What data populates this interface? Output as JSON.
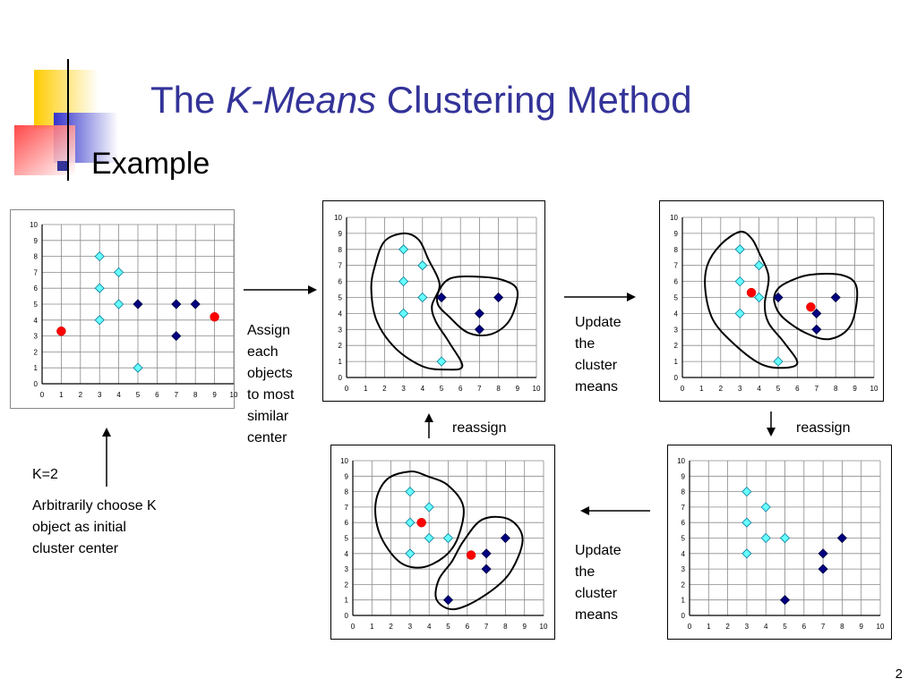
{
  "title": {
    "prefix": "The ",
    "italic": "K-Means",
    "suffix": " Clustering Method"
  },
  "bullet": "Example",
  "labels": {
    "assign": [
      "Assign",
      "each",
      "objects",
      "to most",
      "similar",
      "center"
    ],
    "update_top": [
      "Update",
      "the",
      "cluster",
      "means"
    ],
    "update_bottom": [
      "Update",
      "the",
      "cluster",
      "means"
    ],
    "reassign_left": "reassign",
    "reassign_right": "reassign",
    "k_value": "K=2",
    "arbitrary": [
      "Arbitrarily choose K",
      "object as initial",
      "cluster center"
    ]
  },
  "slide_number": "2",
  "colors": {
    "accent": "#333399",
    "cyan": "#66ffff",
    "navy": "#000080",
    "red": "#ff0000"
  },
  "chart_data": [
    {
      "type": "scatter",
      "panel": "initial",
      "xlim": [
        0,
        10
      ],
      "ylim": [
        0,
        10
      ],
      "grid": true,
      "x_ticks": [
        0,
        1,
        2,
        3,
        4,
        5,
        6,
        7,
        8,
        9,
        10
      ],
      "y_ticks": [
        0,
        1,
        2,
        3,
        4,
        5,
        6,
        7,
        8,
        9,
        10
      ],
      "series": [
        {
          "marker": "cyan-diamond",
          "points": [
            [
              3,
              8
            ],
            [
              4,
              7
            ],
            [
              3,
              6
            ],
            [
              4,
              5
            ],
            [
              3,
              4
            ],
            [
              5,
              1
            ]
          ]
        },
        {
          "marker": "navy-diamond",
          "points": [
            [
              5,
              5
            ],
            [
              7,
              5
            ],
            [
              8,
              5
            ],
            [
              7,
              3
            ]
          ]
        },
        {
          "marker": "red-circle",
          "points": [
            [
              1,
              3.3
            ],
            [
              9,
              4.2
            ]
          ]
        }
      ]
    },
    {
      "type": "scatter",
      "panel": "assigned",
      "xlim": [
        0,
        10
      ],
      "ylim": [
        0,
        10
      ],
      "grid": true,
      "x_ticks": [
        0,
        1,
        2,
        3,
        4,
        5,
        6,
        7,
        8,
        9,
        10
      ],
      "y_ticks": [
        0,
        1,
        2,
        3,
        4,
        5,
        6,
        7,
        8,
        9,
        10
      ],
      "series": [
        {
          "marker": "cyan-diamond",
          "points": [
            [
              3,
              8
            ],
            [
              4,
              7
            ],
            [
              3,
              6
            ],
            [
              4,
              5
            ],
            [
              3,
              4
            ],
            [
              5,
              1
            ]
          ]
        },
        {
          "marker": "navy-diamond",
          "points": [
            [
              5,
              5
            ],
            [
              8,
              5
            ],
            [
              7,
              4
            ],
            [
              7,
              3
            ]
          ]
        }
      ],
      "clusters": [
        [
          [
            3,
            9
          ],
          [
            2,
            8.5
          ],
          [
            1.5,
            7
          ],
          [
            1.3,
            5.5
          ],
          [
            1.6,
            3.5
          ],
          [
            2.6,
            1.8
          ],
          [
            4,
            0.7
          ],
          [
            5.2,
            0.5
          ],
          [
            6.1,
            0.7
          ],
          [
            5.4,
            2.2
          ],
          [
            4.7,
            3.5
          ],
          [
            4.5,
            4.5
          ],
          [
            4.9,
            5.8
          ],
          [
            4.3,
            7.4
          ],
          [
            3.8,
            8.6
          ]
        ],
        [
          [
            4.9,
            5.5
          ],
          [
            5.5,
            6.2
          ],
          [
            6.8,
            6.3
          ],
          [
            8.2,
            6.1
          ],
          [
            9,
            5.4
          ],
          [
            8.6,
            3.6
          ],
          [
            7.6,
            2.7
          ],
          [
            6.4,
            2.8
          ],
          [
            5.4,
            3.8
          ],
          [
            4.8,
            4.6
          ]
        ]
      ]
    },
    {
      "type": "scatter",
      "panel": "means-updated",
      "xlim": [
        0,
        10
      ],
      "ylim": [
        0,
        10
      ],
      "grid": true,
      "x_ticks": [
        0,
        1,
        2,
        3,
        4,
        5,
        6,
        7,
        8,
        9,
        10
      ],
      "y_ticks": [
        0,
        1,
        2,
        3,
        4,
        5,
        6,
        7,
        8,
        9,
        10
      ],
      "series": [
        {
          "marker": "cyan-diamond",
          "points": [
            [
              3,
              8
            ],
            [
              4,
              7
            ],
            [
              3,
              6
            ],
            [
              4,
              5
            ],
            [
              3,
              4
            ],
            [
              5,
              1
            ]
          ]
        },
        {
          "marker": "navy-diamond",
          "points": [
            [
              5,
              5
            ],
            [
              8,
              5
            ],
            [
              7,
              4
            ],
            [
              7,
              3
            ]
          ]
        },
        {
          "marker": "red-circle",
          "points": [
            [
              3.6,
              5.3
            ],
            [
              6.7,
              4.4
            ]
          ]
        }
      ],
      "clusters": [
        [
          [
            3,
            9.1
          ],
          [
            2,
            8.3
          ],
          [
            1.3,
            7
          ],
          [
            1.2,
            5.4
          ],
          [
            1.6,
            3.6
          ],
          [
            2.6,
            2.2
          ],
          [
            4,
            0.9
          ],
          [
            5.1,
            0.6
          ],
          [
            6,
            0.9
          ],
          [
            5.3,
            2.2
          ],
          [
            4.5,
            3.4
          ],
          [
            4.3,
            4.6
          ],
          [
            4.5,
            6.3
          ],
          [
            4,
            7.8
          ],
          [
            3.6,
            8.7
          ]
        ],
        [
          [
            4.9,
            5.4
          ],
          [
            5.4,
            5.9
          ],
          [
            6.6,
            6.4
          ],
          [
            8.3,
            6.4
          ],
          [
            9.1,
            5.6
          ],
          [
            8.8,
            3.3
          ],
          [
            7.7,
            2.4
          ],
          [
            6.4,
            2.8
          ],
          [
            5.2,
            3.8
          ],
          [
            4.8,
            4.7
          ]
        ]
      ]
    },
    {
      "type": "scatter",
      "panel": "reassigned-bottom-right",
      "xlim": [
        0,
        10
      ],
      "ylim": [
        0,
        10
      ],
      "grid": true,
      "x_ticks": [
        0,
        1,
        2,
        3,
        4,
        5,
        6,
        7,
        8,
        9,
        10
      ],
      "y_ticks": [
        0,
        1,
        2,
        3,
        4,
        5,
        6,
        7,
        8,
        9,
        10
      ],
      "series": [
        {
          "marker": "cyan-diamond",
          "points": [
            [
              3,
              8
            ],
            [
              4,
              7
            ],
            [
              3,
              6
            ],
            [
              4,
              5
            ],
            [
              5,
              5
            ],
            [
              3,
              4
            ]
          ]
        },
        {
          "marker": "navy-diamond",
          "points": [
            [
              8,
              5
            ],
            [
              7,
              4
            ],
            [
              7,
              3
            ],
            [
              5,
              1
            ]
          ]
        }
      ]
    },
    {
      "type": "scatter",
      "panel": "final-bottom-center",
      "xlim": [
        0,
        10
      ],
      "ylim": [
        0,
        10
      ],
      "grid": true,
      "x_ticks": [
        0,
        1,
        2,
        3,
        4,
        5,
        6,
        7,
        8,
        9,
        10
      ],
      "y_ticks": [
        0,
        1,
        2,
        3,
        4,
        5,
        6,
        7,
        8,
        9,
        10
      ],
      "series": [
        {
          "marker": "cyan-diamond",
          "points": [
            [
              3,
              8
            ],
            [
              4,
              7
            ],
            [
              3,
              6
            ],
            [
              4,
              5
            ],
            [
              5,
              5
            ],
            [
              3,
              4
            ]
          ]
        },
        {
          "marker": "navy-diamond",
          "points": [
            [
              8,
              5
            ],
            [
              7,
              4
            ],
            [
              7,
              3
            ],
            [
              5,
              1
            ]
          ]
        },
        {
          "marker": "red-circle",
          "points": [
            [
              3.6,
              6
            ],
            [
              6.2,
              3.9
            ]
          ]
        }
      ],
      "clusters": [
        [
          [
            3,
            9.3
          ],
          [
            1.8,
            8.8
          ],
          [
            1.2,
            7.3
          ],
          [
            1.4,
            5.3
          ],
          [
            2.4,
            3.5
          ],
          [
            3.6,
            3.1
          ],
          [
            4.8,
            3.8
          ],
          [
            5.5,
            5
          ],
          [
            5.8,
            7
          ],
          [
            5,
            8.4
          ],
          [
            3.9,
            9
          ]
        ],
        [
          [
            6.8,
            6.2
          ],
          [
            8.2,
            6.2
          ],
          [
            8.9,
            4.9
          ],
          [
            8.2,
            2.7
          ],
          [
            6.8,
            1.2
          ],
          [
            5.3,
            0.4
          ],
          [
            4.4,
            1
          ],
          [
            4.5,
            2.3
          ],
          [
            5.2,
            3.5
          ],
          [
            5.8,
            4.8
          ]
        ]
      ]
    }
  ]
}
